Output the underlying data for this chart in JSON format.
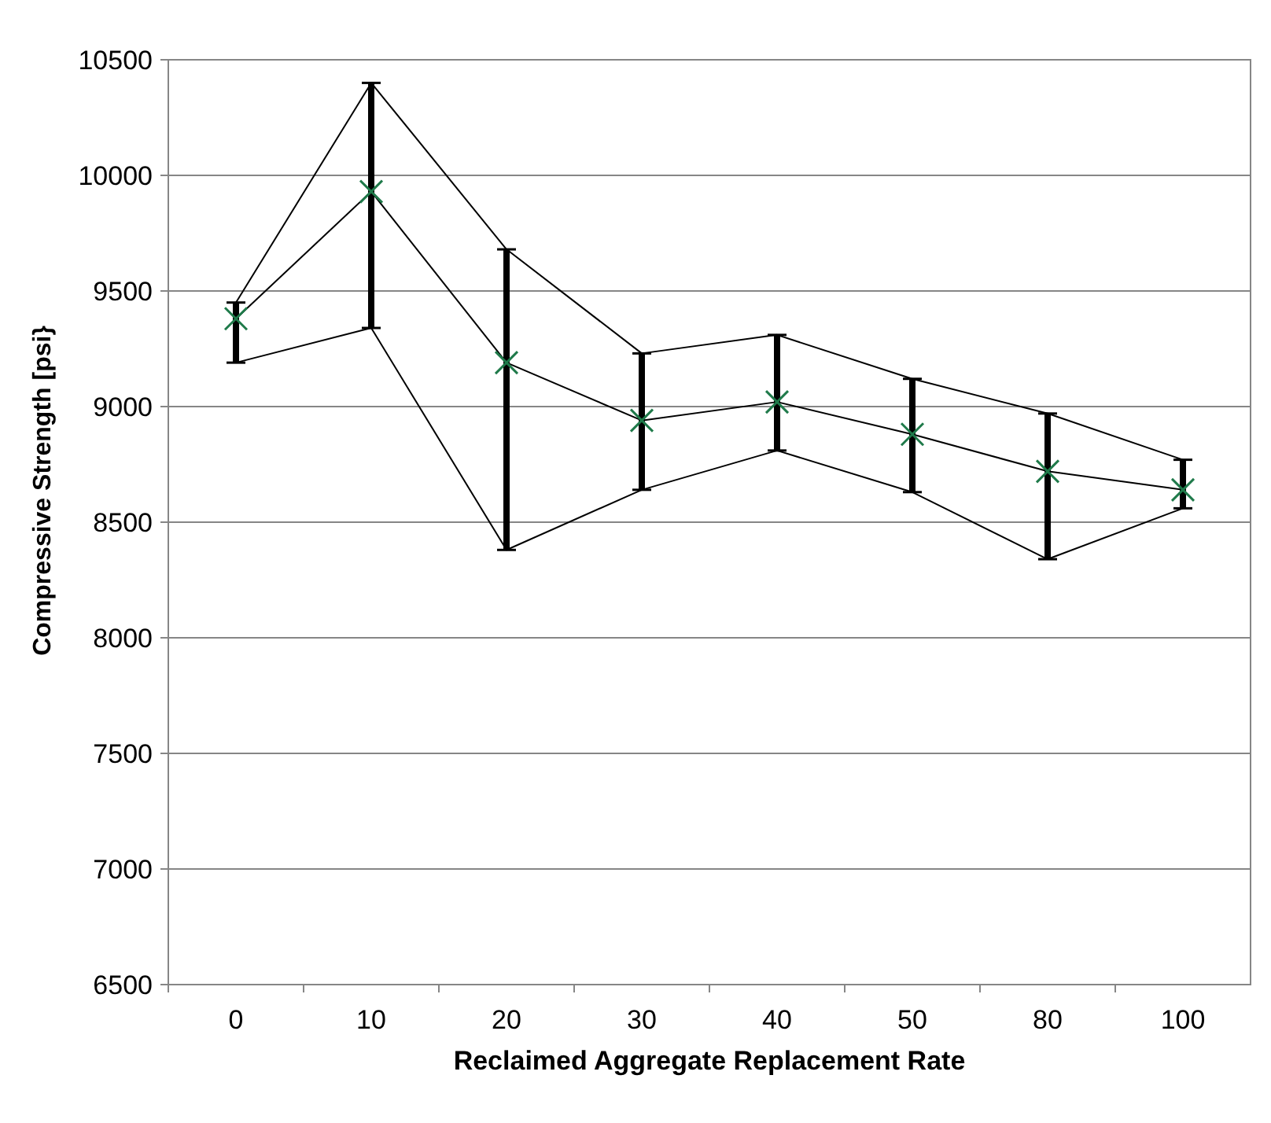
{
  "chart_data": {
    "type": "line",
    "xlabel": "Reclaimed Aggregate Replacement Rate",
    "ylabel": "Compressive Strength [psi}",
    "categories": [
      "0",
      "10",
      "20",
      "30",
      "40",
      "50",
      "80",
      "100"
    ],
    "ylim": [
      6500,
      10500
    ],
    "yticks": [
      6500,
      7000,
      7500,
      8000,
      8500,
      9000,
      9500,
      10000,
      10500
    ],
    "grid": "y",
    "series": [
      {
        "values": [
          9450,
          10400,
          9680,
          9230,
          9310,
          9120,
          8970,
          8770
        ],
        "marker": "none"
      },
      {
        "values": [
          9380,
          9930,
          9190,
          8940,
          9020,
          8880,
          8720,
          8640
        ],
        "color": "#1f7a4a",
        "marker": "cross",
        "errors": [
          [
            9190,
            9450
          ],
          [
            9340,
            10400
          ],
          [
            8380,
            9680
          ],
          [
            8640,
            9230
          ],
          [
            8810,
            9310
          ],
          [
            8630,
            9120
          ],
          [
            8340,
            8970
          ],
          [
            8560,
            8770
          ]
        ]
      },
      {
        "values": [
          9190,
          9340,
          8380,
          8640,
          8810,
          8630,
          8340,
          8560
        ],
        "marker": "none"
      }
    ]
  }
}
